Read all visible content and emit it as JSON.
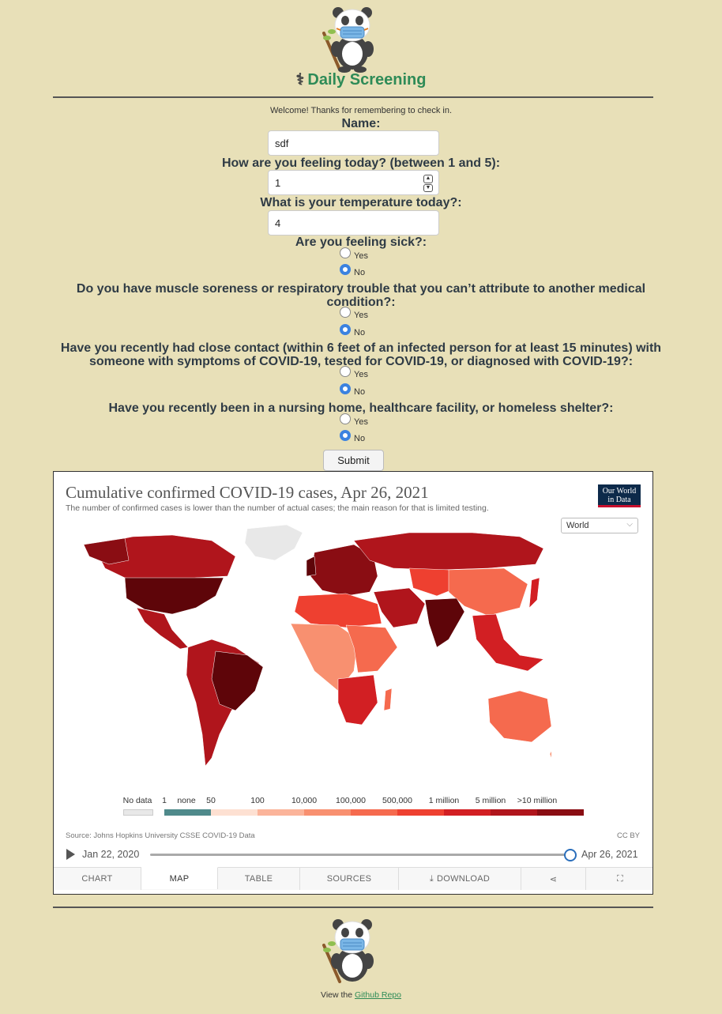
{
  "header": {
    "title": "Daily Screening",
    "title_icon": "stethoscope-icon",
    "logo_icon": "panda-mask-icon"
  },
  "form": {
    "welcome": "Welcome! Thanks for remembering to check in.",
    "name_label": "Name:",
    "name_value": "sdf",
    "feeling_label": "How are you feeling today? (between 1 and 5):",
    "feeling_value": "1",
    "temp_label": "What is your temperature today?:",
    "temp_value": "4",
    "sick_label": "Are you feeling sick?:",
    "soreness_label": "Do you have muscle soreness or respiratory trouble that you can’t attribute to another medical condition?:",
    "contact_label": "Have you recently had close contact (within 6 feet of an infected person for at least 15 minutes) with someone with symptoms of COVID-19, tested for COVID-19, or diagnosed with COVID-19?:",
    "facility_label": "Have you recently been in a nursing home, healthcare facility, or homeless shelter?:",
    "yes": "Yes",
    "no": "No",
    "selected": "No",
    "submit": "Submit"
  },
  "chart": {
    "title": "Cumulative confirmed COVID-19 cases, Apr 26, 2021",
    "subtitle": "The number of confirmed cases is lower than the number of actual cases; the main reason for that is limited testing.",
    "brand_line1": "Our World",
    "brand_line2": "in Data",
    "region": "World",
    "source": "Source: Johns Hopkins University CSSE COVID-19 Data",
    "license": "CC BY",
    "start_date": "Jan 22, 2020",
    "end_date": "Apr 26, 2021",
    "legend": {
      "no_data": "No data",
      "none": "none",
      "labels": [
        "1",
        "50",
        "100",
        "10,000",
        "100,000",
        "500,000",
        "1 million",
        "5 million",
        ">10 million"
      ],
      "colors": {
        "no_data": "#e8e8e8",
        "none": "#4f8a8b",
        "bins": [
          "#fde0d2",
          "#fbb49a",
          "#f89070",
          "#f56a4e",
          "#ee4030",
          "#d21f23",
          "#b0151c",
          "#8a0d13",
          "#5e0509"
        ]
      }
    },
    "tabs": [
      "CHART",
      "MAP",
      "TABLE",
      "SOURCES",
      "DOWNLOAD"
    ],
    "active_tab": "MAP"
  },
  "footer": {
    "prefix": "View the ",
    "link": "Github Repo"
  }
}
